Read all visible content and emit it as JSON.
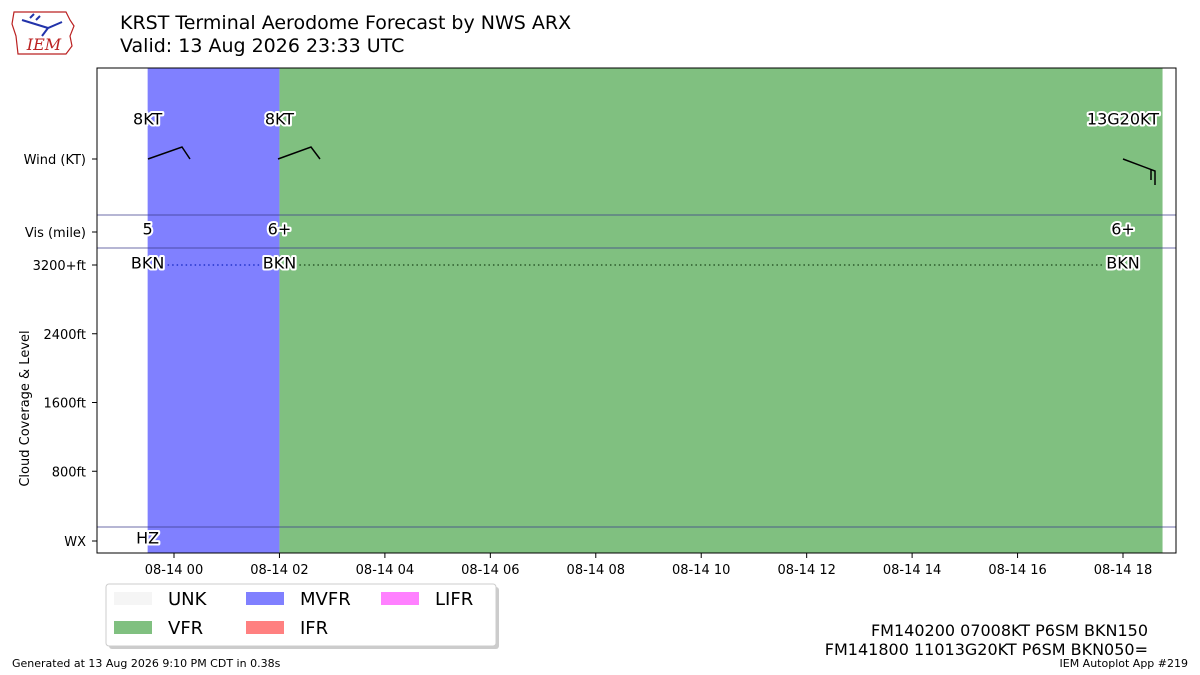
{
  "header": {
    "title": "KRST Terminal Aerodome Forecast by NWS ARX",
    "subtitle": "Valid: 13 Aug 2026 23:33 UTC",
    "logo_text": "IEM"
  },
  "footer": {
    "generated": "Generated at 13 Aug 2026 9:10 PM CDT in 0.38s",
    "app": "IEM Autoplot App #219"
  },
  "raw_taf": [
    "FM140200 07008KT P6SM BKN150",
    "FM141800 11013G20KT P6SM BKN050="
  ],
  "colors": {
    "UNK": "#f5f5f5",
    "VFR": "#80c080",
    "MVFR": "#8080ff",
    "IFR": "#ff8080",
    "LIFR": "#ff80ff",
    "band_line": "#3b3b8c"
  },
  "chart_data": {
    "type": "timeline",
    "xlim": [
      "2026-08-13 23:03",
      "2026-08-14 18:45"
    ],
    "x_ticks": [
      "08-14 00",
      "08-14 02",
      "08-14 04",
      "08-14 06",
      "08-14 08",
      "08-14 10",
      "08-14 12",
      "08-14 14",
      "08-14 16",
      "08-14 18"
    ],
    "x_tick_hours": [
      0,
      2,
      4,
      6,
      8,
      10,
      12,
      14,
      16,
      18
    ],
    "ylabel": "Cloud Coverage & Level",
    "row_labels": {
      "wind": "Wind (KT)",
      "vis": "Vis (mile)",
      "wx": "WX"
    },
    "y_ticks": [
      "3200+ft",
      "2400ft",
      "1600ft",
      "800ft"
    ],
    "y_tick_values": [
      3200,
      2400,
      1600,
      800
    ],
    "flight_category_periods": [
      {
        "start_hour": -0.5,
        "end_hour": 2.0,
        "category": "MVFR"
      },
      {
        "start_hour": 2.0,
        "end_hour": 18.75,
        "category": "VFR"
      }
    ],
    "forecasts": [
      {
        "hour": -0.5,
        "wind": "8KT",
        "wind_dir": null,
        "vis": "5",
        "sky": "BKN",
        "level_ft": 3200,
        "wx": "HZ"
      },
      {
        "hour": 2.0,
        "wind": "8KT",
        "wind_dir": 70,
        "vis": "6+",
        "sky": "BKN",
        "level_ft": 3200,
        "wx": ""
      },
      {
        "hour": 18.0,
        "wind": "13G20KT",
        "wind_dir": 110,
        "vis": "6+",
        "sky": "BKN",
        "level_ft": 3200,
        "wx": ""
      }
    ],
    "legend": {
      "placement": "bottom-left",
      "entries": [
        "UNK",
        "MVFR",
        "LIFR",
        "VFR",
        "IFR"
      ]
    }
  }
}
